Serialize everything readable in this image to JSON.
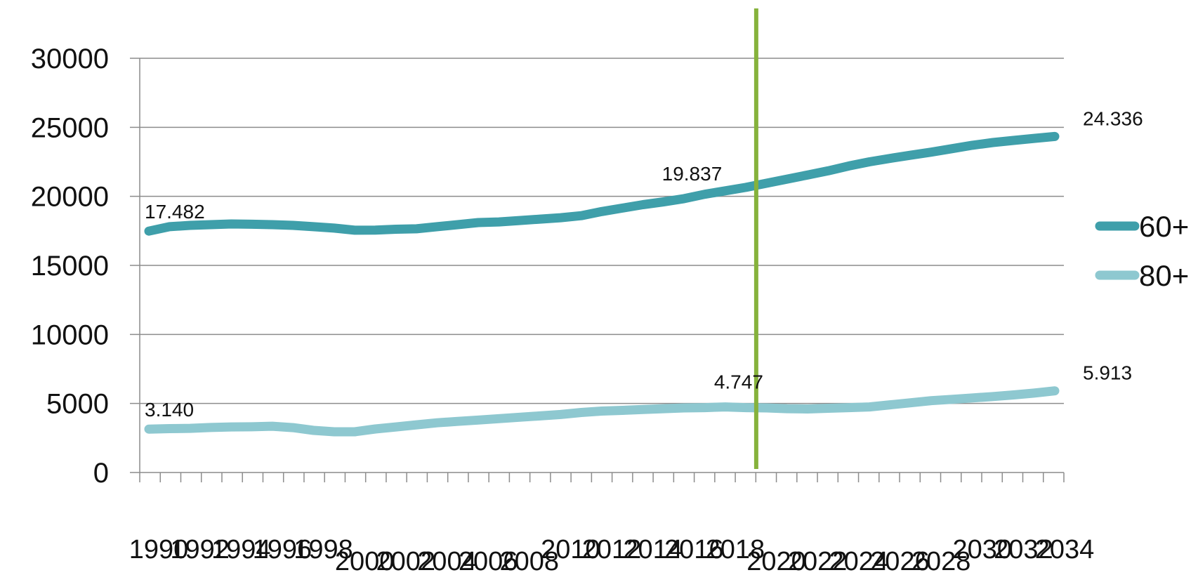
{
  "chart_data": {
    "type": "line",
    "title": "",
    "xlabel": "",
    "ylabel": "",
    "ylim": [
      0,
      30000
    ],
    "yticks": [
      "0",
      "5000",
      "10000",
      "15000",
      "20000",
      "25000",
      "30000"
    ],
    "grid": true,
    "legend_position": "right",
    "colors": {
      "60+": "#3f9faa",
      "80+": "#8ec8d0",
      "marker": "#86b23c"
    },
    "x": [
      1990,
      1991,
      1992,
      1993,
      1994,
      1995,
      1996,
      1997,
      1998,
      1999,
      2000,
      2001,
      2002,
      2003,
      2004,
      2005,
      2006,
      2007,
      2008,
      2009,
      2010,
      2011,
      2012,
      2013,
      2014,
      2015,
      2016,
      2017,
      2018,
      2019,
      2020,
      2021,
      2022,
      2023,
      2024,
      2025,
      2026,
      2027,
      2028,
      2029,
      2030,
      2031,
      2032,
      2033,
      2034
    ],
    "xtick_labels": [
      {
        "x": 1990,
        "text": "1990"
      },
      {
        "x": 1992,
        "text": "1992"
      },
      {
        "x": 1994,
        "text": "1994"
      },
      {
        "x": 1996,
        "text": "1996"
      },
      {
        "x": 1998,
        "text": "1998"
      },
      {
        "x": 2000,
        "text": "2000"
      },
      {
        "x": 2002,
        "text": "2002"
      },
      {
        "x": 2004,
        "text": "2004"
      },
      {
        "x": 2006,
        "text": "2006"
      },
      {
        "x": 2008,
        "text": "2008"
      },
      {
        "x": 2010,
        "text": "2010"
      },
      {
        "x": 2012,
        "text": "2012"
      },
      {
        "x": 2014,
        "text": "2014"
      },
      {
        "x": 2016,
        "text": "2016"
      },
      {
        "x": 2018,
        "text": "2018"
      },
      {
        "x": 2020,
        "text": "2020"
      },
      {
        "x": 2022,
        "text": "2022"
      },
      {
        "x": 2024,
        "text": "2024"
      },
      {
        "x": 2026,
        "text": "2026"
      },
      {
        "x": 2028,
        "text": "2028"
      },
      {
        "x": 2030,
        "text": "2030"
      },
      {
        "x": 2032,
        "text": "2032"
      },
      {
        "x": 2034,
        "text": "2034"
      }
    ],
    "vertical_marker_x": 2019.5,
    "series": [
      {
        "name": "60+",
        "values": [
          17482,
          17800,
          17900,
          17950,
          18000,
          17980,
          17950,
          17900,
          17800,
          17700,
          17550,
          17560,
          17620,
          17650,
          17800,
          17950,
          18100,
          18150,
          18250,
          18350,
          18450,
          18600,
          18900,
          19150,
          19400,
          19600,
          19837,
          20150,
          20400,
          20650,
          20950,
          21250,
          21550,
          21850,
          22200,
          22500,
          22750,
          22980,
          23200,
          23450,
          23700,
          23900,
          24050,
          24200,
          24336
        ]
      },
      {
        "name": "80+",
        "values": [
          3140,
          3180,
          3200,
          3260,
          3300,
          3310,
          3350,
          3250,
          3050,
          2950,
          2950,
          3150,
          3300,
          3450,
          3600,
          3700,
          3800,
          3900,
          4000,
          4100,
          4200,
          4350,
          4450,
          4500,
          4560,
          4620,
          4680,
          4700,
          4747,
          4700,
          4680,
          4620,
          4600,
          4650,
          4700,
          4750,
          4900,
          5050,
          5200,
          5300,
          5400,
          5500,
          5620,
          5750,
          5913
        ]
      }
    ],
    "data_labels": [
      {
        "series": "60+",
        "x": 1990,
        "text": "17.482"
      },
      {
        "series": "60+",
        "x": 2016,
        "text": "19.837"
      },
      {
        "series": "60+",
        "x": 2034,
        "text": "24.336"
      },
      {
        "series": "80+",
        "x": 1990,
        "text": "3.140"
      },
      {
        "series": "80+",
        "x": 2018,
        "text": "4.747"
      },
      {
        "series": "80+",
        "x": 2034,
        "text": "5.913"
      }
    ]
  }
}
